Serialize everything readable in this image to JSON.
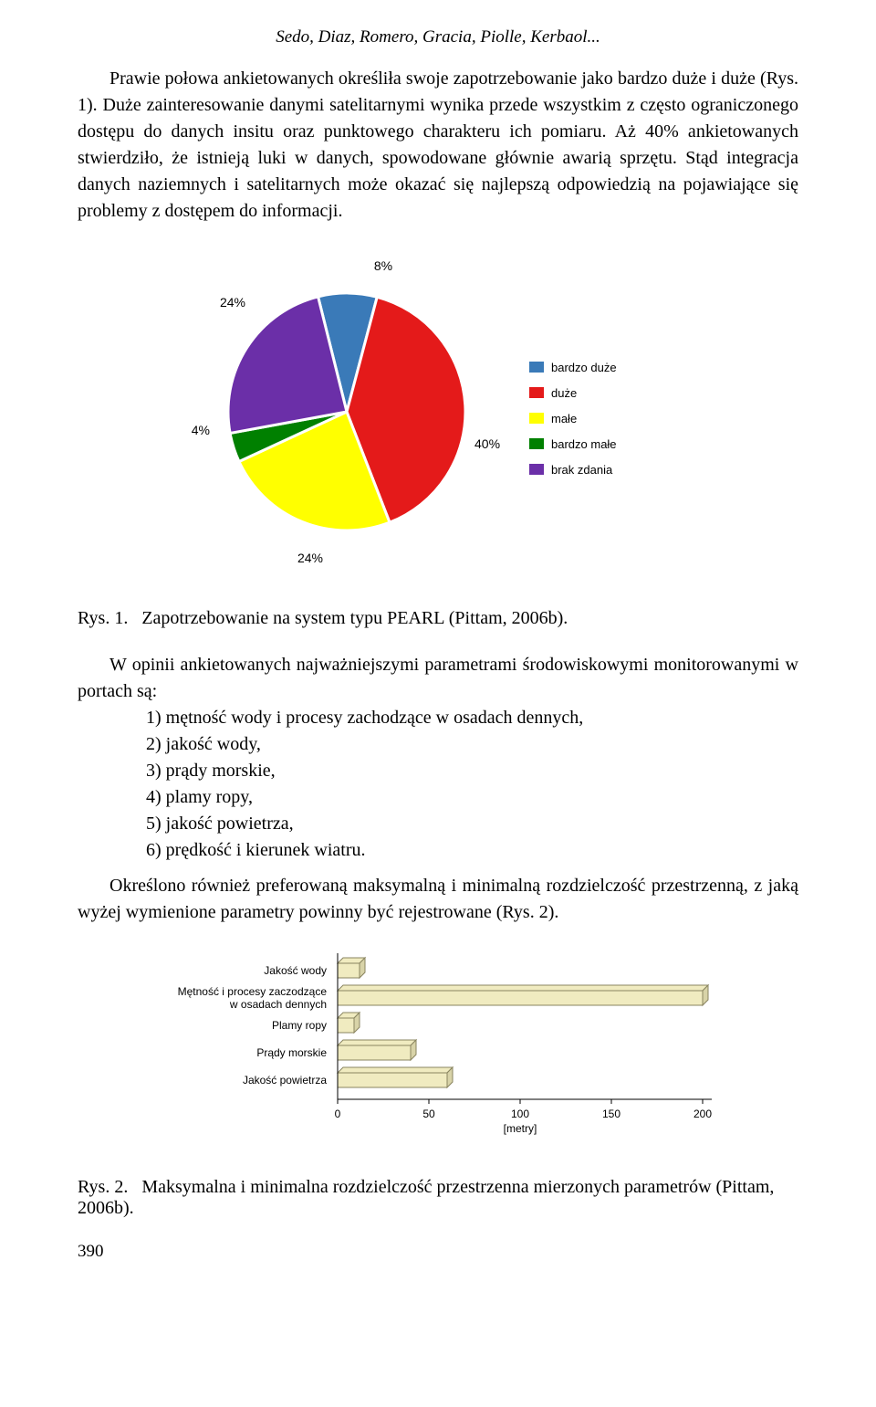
{
  "header_authors": "Sedo, Diaz, Romero, Gracia, Piolle, Kerbaol...",
  "para1": "Prawie połowa ankietowanych określiła swoje zapotrzebowanie jako bardzo duże i duże (Rys. 1). Duże zainteresowanie danymi satelitarnymi wynika przede wszystkim z często ograniczonego dostępu do danych insitu oraz punktowego charakteru ich pomiaru. Aż 40% ankietowanych stwierdziło, że istnieją luki w danych, spowodowane głównie awarią sprzętu. Stąd integracja danych naziemnych i satelitarnych może okazać się najlepszą odpowiedzią na pojawiające się problemy z dostępem do informacji.",
  "pie": {
    "type": "pie",
    "slices": [
      {
        "label": "bardzo duże",
        "value": 8,
        "color": "#3a7ab8",
        "label_pos": "top"
      },
      {
        "label": "duże",
        "value": 40,
        "color": "#e41a1a",
        "label_pos": "right"
      },
      {
        "label": "małe",
        "value": 24,
        "color": "#ffff00",
        "label_pos": "bottom"
      },
      {
        "label": "bardzo małe",
        "value": 4,
        "color": "#008000",
        "label_pos": "left"
      },
      {
        "label": "brak zdania",
        "value": 24,
        "color": "#6b2fa8",
        "label_pos": "topleft"
      }
    ],
    "legend_items": [
      {
        "label": "bardzo duże",
        "color": "#3a7ab8"
      },
      {
        "label": "duże",
        "color": "#e41a1a"
      },
      {
        "label": "małe",
        "color": "#ffff00"
      },
      {
        "label": "bardzo małe",
        "color": "#008000"
      },
      {
        "label": "brak zdania",
        "color": "#6b2fa8"
      }
    ],
    "stroke": "#ffffff",
    "stroke_width": 3,
    "label_fontsize": 14,
    "legend_fontsize": 13
  },
  "fig1_label": "Rys. 1.",
  "fig1_caption": "Zapotrzebowanie na system typu PEARL (Pittam, 2006b).",
  "list_intro": "W opinii ankietowanych najważniejszymi parametrami środowiskowymi monitorowanymi w portach są:",
  "list_items": [
    "mętność wody i procesy zachodzące w osadach dennych,",
    "jakość wody,",
    "prądy morskie,",
    "plamy ropy,",
    "jakość powietrza,",
    "prędkość i kierunek wiatru."
  ],
  "para2": "Określono również preferowaną maksymalną i minimalną rozdzielczość przestrzenną, z jaką wyżej wymienione parametry powinny być rejestrowane (Rys. 2).",
  "bar": {
    "type": "bar",
    "categories": [
      "Jakość wody",
      "Mętność i procesy zaczodzące w osadach dennych",
      "Plamy ropy",
      "Prądy morskie",
      "Jakość powietrza"
    ],
    "values": [
      12,
      200,
      9,
      40,
      60
    ],
    "bar_color": "#f0ebc0",
    "bar_stroke": "#8a8560",
    "axis_color": "#000000",
    "xlim": [
      0,
      200
    ],
    "xticks": [
      0,
      50,
      100,
      150,
      200
    ],
    "xlabel": "[metry]",
    "label_fontsize": 12,
    "3d_depth": 6
  },
  "fig2_label": "Rys. 2.",
  "fig2_caption": "Maksymalna i minimalna rozdzielczość przestrzenna mierzonych parametrów (Pittam, 2006b).",
  "page_number": "390"
}
